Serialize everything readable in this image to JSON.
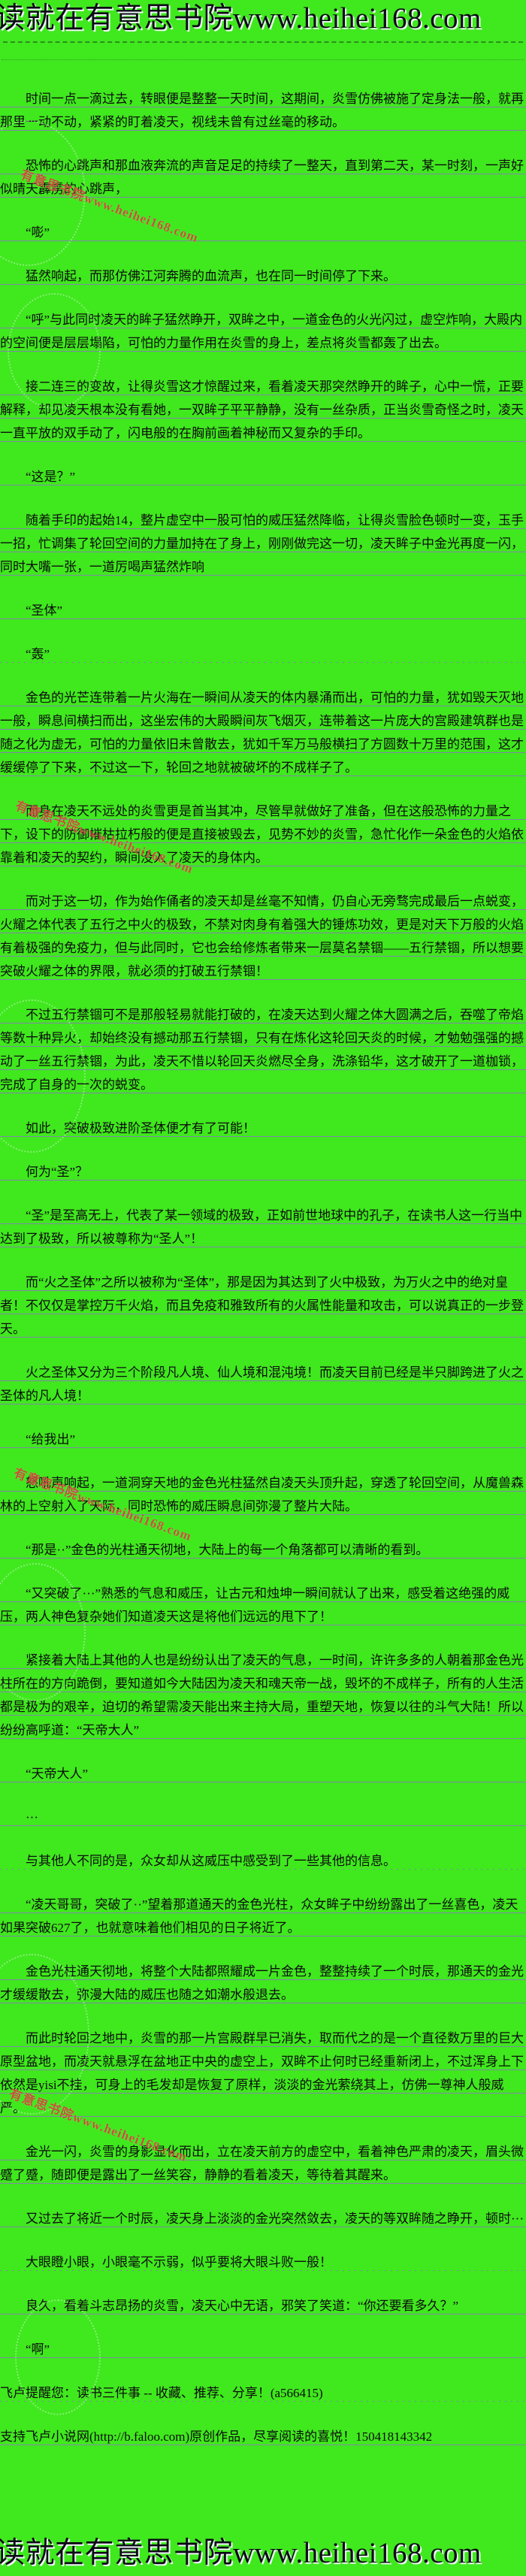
{
  "page": {
    "background_color": "#40E81E",
    "header": {
      "text": "读就在有意思书院www.heihei168.com"
    },
    "footer": {
      "text": "读就在有意思书院www.heihei168.com"
    },
    "watermark": {
      "text": "有意思书院www.heihei168.com",
      "color": "#d14438"
    }
  },
  "content": {
    "paragraphs": [
      {
        "text": "时间一点一滴过去，转眼便是整整一天时间，这期间，炎雪仿佛被施了定身法一般，就再那里一动不动，紧紧的盯着凌天，视线未曾有过丝毫的移动。"
      },
      {
        "text": "恐怖的心跳声和那血液奔流的声音足足的持续了一整天，直到第二天，某一时刻，一声好似晴天霹雳的心跳声，"
      },
      {
        "text": "“嘭”"
      },
      {
        "text": "猛然响起，而那仿佛江河奔腾的血流声，也在同一时间停了下来。"
      },
      {
        "text": "“呼”与此同时凌天的眸子猛然睁开，双眸之中，一道金色的火光闪过，虚空炸响，大殿内的空间便是层层塌陷，可怕的力量作用在炎雪的身上，差点将炎雪都轰了出去。"
      },
      {
        "text": "接二连三的变故，让得炎雪这才惊醒过来，看着凌天那突然睁开的眸子，心中一慌，正要解释，却见凌天根本没有看她，一双眸子平平静静，没有一丝杂质，正当炎雪奇怪之时，凌天一直平放的双手动了，闪电般的在胸前画着神秘而又复杂的手印。"
      },
      {
        "text": "“这是？”"
      },
      {
        "text": "随着手印的起始14，整片虚空中一股可怕的威压猛然降临，让得炎雪脸色顿时一变，玉手一招，忙调集了轮回空间的力量加持在了身上，刚刚做完这一切，凌天眸子中金光再度一闪，同时大嘴一张，一道厉喝声猛然炸响"
      },
      {
        "text": "“圣体”"
      },
      {
        "text": "“轰”",
        "dotted": true
      },
      {
        "text": "金色的光芒连带着一片火海在一瞬间从凌天的体内暴涌而出，可怕的力量，犹如毁天灭地一般，瞬息间横扫而出，这坐宏伟的大殿瞬间灰飞烟灭，连带着这一片庞大的宫殿建筑群也是随之化为虚无，可怕的力量依旧未曾散去，犹如千军万马般横扫了方圆数十万里的范围，这才缓缓停了下来，不过这一下，轮回之地就被破坏的不成样子了。"
      },
      {
        "text": "而身在凌天不远处的炎雪更是首当其冲，尽管早就做好了准备，但在这般恐怖的力量之下，设下的防御摧枯拉朽般的便是直接被毁去，见势不妙的炎雪，急忙化作一朵金色的火焰依靠着和凌天的契约，瞬间没入了凌天的身体内。"
      },
      {
        "text": "而对于这一切，作为始作俑者的凌天却是丝毫不知情，仍自心无旁骛完成最后一点蜕变，火耀之体代表了五行之中火的极致，不禁对肉身有着强大的锤炼功效，更是对天下万般的火焰有着极强的免疫力，但与此同时，它也会给修炼者带来一层莫名禁锢——五行禁锢，所以想要突破火耀之体的界限，就必须的打破五行禁锢！"
      },
      {
        "text": "不过五行禁锢可不是那般轻易就能打破的，在凌天达到火耀之体大圆满之后，吞噬了帝焰等数十种异火，却始终没有撼动那五行禁锢，只有在炼化这轮回天炎的时候，才勉勉强强的撼动了一丝五行禁锢，为此，凌天不惜以轮回天炎燃尽全身，洗涤铅华，这才破开了一道枷锁，完成了自身的一次的蜕变。"
      },
      {
        "text": "如此，突破极致进阶圣体便才有了可能！"
      },
      {
        "text": "何为“圣”？"
      },
      {
        "text": "“圣”是至高无上，代表了某一领域的极致，正如前世地球中的孔子，在读书人这一行当中达到了极致，所以被尊称为“圣人”！"
      },
      {
        "text": "而“火之圣体”之所以被称为“圣体”，那是因为其达到了火中极致，为万火之中的绝对皇者！不仅仅是掌控万千火焰，而且免疫和雅致所有的火属性能量和攻击，可以说真正的一步登天。"
      },
      {
        "text": "火之圣体又分为三个阶段凡人境、仙人境和混沌境！而凌天目前已经是半只脚跨进了火之圣体的凡人境！"
      },
      {
        "text": "“给我出”"
      },
      {
        "text": "怒吼声响起，一道洞穿天地的金色光柱猛然自凌天头顶升起，穿透了轮回空间，从魔兽森林的上空射入了天际，同时恐怖的威压瞬息间弥漫了整片大陆。"
      },
      {
        "text": "“那是··”金色的光柱通天彻地，大陆上的每一个角落都可以清晰的看到。"
      },
      {
        "text": "“又突破了···”熟悉的气息和威压，让古元和烛坤一瞬间就认了出来，感受着这绝强的威压，两人神色复杂她们知道凌天这是将他们远远的甩下了！"
      },
      {
        "text": "紧接着大陆上其他的人也是纷纷认出了凌天的气息，一时间，许许多多的人朝着那金色光柱所在的方向跪倒，要知道如今大陆因为凌天和魂天帝一战，毁坏的不成样子，所有的人生活都是极为的艰辛，迫切的希望需凌天能出来主持大局，重塑天地，恢复以往的斗气大陆！所以纷纷高呼道：“天帝大人”"
      },
      {
        "text": "“天帝大人”"
      },
      {
        "text": "···"
      },
      {
        "text": "与其他人不同的是，众女却从这威压中感受到了一些其他的信息。",
        "dotted": true
      },
      {
        "text": "“凌天哥哥，突破了··”望着那道通天的金色光柱，众女眸子中纷纷露出了一丝喜色，凌天如果突破627了，也就意味着他们相见的日子将近了。"
      },
      {
        "text": "金色光柱通天彻地，将整个大陆都照耀成一片金色，整整持续了一个时辰，那通天的金光才缓缓散去，弥漫大陆的威压也随之如潮水般退去。"
      },
      {
        "text": "而此时轮回之地中，炎雪的那一片宫殿群早已消失，取而代之的是一个直径数万里的巨大原型盆地，而凌天就悬浮在盆地正中央的虚空上，双眸不止何时已经重新闭上，不过浑身上下依然是yisi不挂，可身上的毛发却是恢复了原样，淡淡的金光萦绕其上，仿佛一尊神人般威严。"
      },
      {
        "text": "金光一闪，炎雪的身影显化而出，立在凌天前方的虚空中，看着神色严肃的凌天，眉头微蹙了蹙，随即便是露出了一丝笑容，静静的看着凌天，等待着其醒来。"
      },
      {
        "text": "又过去了将近一个时辰，凌天身上淡淡的金光突然敛去，凌天的等双眸随之睁开，顿时···"
      },
      {
        "text": "大眼瞪小眼，小眼毫不示弱，似乎要将大眼斗败一般！",
        "dotted": true
      },
      {
        "text": "良久，看着斗志昂扬的炎雪，凌天心中无语，邪笑了笑道：“你还要看多久？”"
      },
      {
        "text": "“啊”"
      },
      {
        "text": "飞卢提醒您：读书三件事 -- 收藏、推荐、分享！(a566415)",
        "no_indent": true,
        "dotted": true
      },
      {
        "text": "支持飞卢小说网(http://b.faloo.com)原创作品，尽享阅读的喜悦！150418143342",
        "no_indent": true
      }
    ]
  }
}
